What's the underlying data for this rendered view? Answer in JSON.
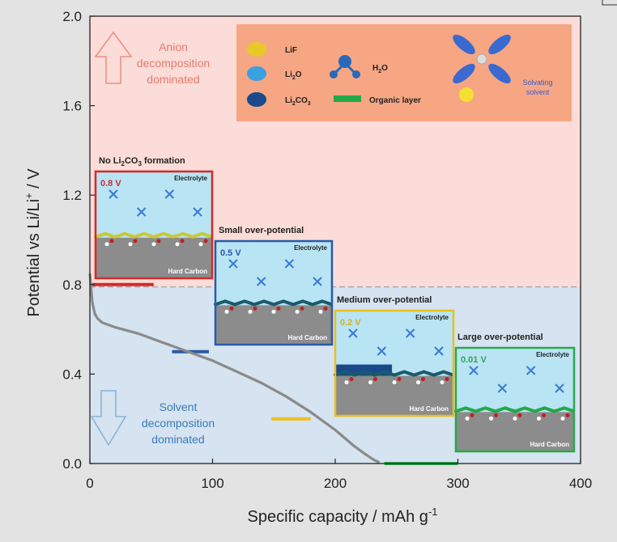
{
  "chart_data": {
    "type": "line",
    "xlabel": "Specific capacity / mAh g",
    "xlabel_sup": "-1",
    "ylabel": "Potential vs Li/Li",
    "ylabel_sup": "+",
    "ylabel_unit": " / V",
    "xlim": [
      0,
      400
    ],
    "ylim": [
      0,
      2.0
    ],
    "x_ticks": [
      "0",
      "100",
      "200",
      "300",
      "400"
    ],
    "y_ticks": [
      "0.0",
      "0.4",
      "0.8",
      "1.2",
      "1.6",
      "2.0"
    ],
    "threshold_potential": 0.79,
    "series": [
      {
        "x": [
          0,
          2,
          4,
          6,
          10,
          20,
          40,
          60,
          80,
          100,
          120,
          140,
          160,
          180,
          200,
          215,
          225,
          232,
          236
        ],
        "y": [
          0.85,
          0.72,
          0.67,
          0.65,
          0.63,
          0.61,
          0.58,
          0.54,
          0.5,
          0.46,
          0.41,
          0.36,
          0.3,
          0.23,
          0.15,
          0.08,
          0.04,
          0.015,
          0.005
        ],
        "color": "#8a8a8a"
      }
    ],
    "level_markers": [
      {
        "x": [
          2,
          52
        ],
        "y": 0.8,
        "color": "#d42a2a"
      },
      {
        "x": [
          67,
          97
        ],
        "y": 0.5,
        "color": "#2a5aa8"
      },
      {
        "x": [
          148,
          180
        ],
        "y": 0.2,
        "color": "#f0c020"
      },
      {
        "x": [
          240,
          300
        ],
        "y": 0.0,
        "color": "#2aa84a"
      }
    ],
    "regions": {
      "upper_text": [
        "Anion",
        "decomposition",
        "dominated"
      ],
      "lower_text": [
        "Solvent",
        "decomposition",
        "dominated"
      ],
      "upper_color": "#fbdcd8",
      "lower_color": "#d6e3f0"
    },
    "legend": {
      "items": [
        {
          "label": "LiF",
          "color": "#e8c828"
        },
        {
          "label": "Li",
          "sub": "2",
          "after": "O",
          "color": "#3aa0e0"
        },
        {
          "label": "Li",
          "sub": "2",
          "after": "CO",
          "sub2": "3",
          "color": "#1a4a8a"
        },
        {
          "label": "H",
          "sub": "2",
          "after": "O",
          "color": "#2a68b8"
        },
        {
          "label": "Organic layer",
          "color": "#22a84a"
        }
      ],
      "solvating_lines": [
        "Solvating",
        "solvent"
      ],
      "bg": "#f5a07a"
    },
    "panels": [
      {
        "title": "No Li",
        "title_sub": "2",
        "title_after": "CO",
        "title_sub2": "3",
        "title_end": " formation",
        "voltage": "0.8 V",
        "electrolyte": "Electrolyte",
        "electrode": "Hard Carbon",
        "border": "#d42a2a",
        "vcolor": "#d42a2a"
      },
      {
        "title": "Small over-potential",
        "voltage": "0.5 V",
        "electrolyte": "Electrolyte",
        "electrode": "Hard Carbon",
        "border": "#2a5aa8",
        "vcolor": "#2a5aa8"
      },
      {
        "title": "Medium over-potential",
        "voltage": "0.2 V",
        "electrolyte": "Electrolyte",
        "electrode": "Hard Carbon",
        "border": "#e8c020",
        "vcolor": "#d8b020"
      },
      {
        "title": "Large over-potential",
        "voltage": "0.01 V",
        "electrolyte": "Electrolyte",
        "electrode": "Hard Carbon",
        "border": "#2aa84a",
        "vcolor": "#2aa84a"
      }
    ]
  }
}
